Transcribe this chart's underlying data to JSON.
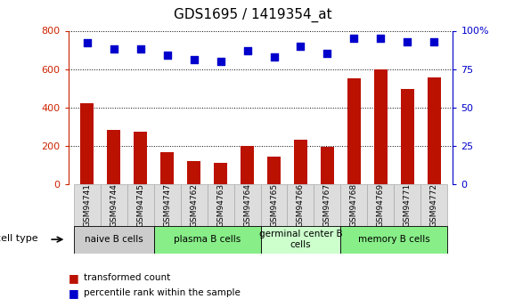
{
  "title": "GDS1695 / 1419354_at",
  "samples": [
    "GSM94741",
    "GSM94744",
    "GSM94745",
    "GSM94747",
    "GSM94762",
    "GSM94763",
    "GSM94764",
    "GSM94765",
    "GSM94766",
    "GSM94767",
    "GSM94768",
    "GSM94769",
    "GSM94771",
    "GSM94772"
  ],
  "transformed_count": [
    420,
    285,
    275,
    165,
    120,
    110,
    200,
    145,
    230,
    195,
    550,
    600,
    495,
    555
  ],
  "percentile_rank": [
    92,
    88,
    88,
    84,
    81,
    80,
    87,
    83,
    90,
    85,
    95,
    95,
    93,
    93
  ],
  "cell_type_groups": [
    {
      "label": "naive B cells",
      "start": 0,
      "end": 3,
      "color": "#cccccc"
    },
    {
      "label": "plasma B cells",
      "start": 3,
      "end": 7,
      "color": "#88ee88"
    },
    {
      "label": "germinal center B\ncells",
      "start": 7,
      "end": 10,
      "color": "#ccffcc"
    },
    {
      "label": "memory B cells",
      "start": 10,
      "end": 14,
      "color": "#88ee88"
    }
  ],
  "bar_color": "#bb1100",
  "dot_color": "#0000cc",
  "left_ylim": [
    0,
    800
  ],
  "left_yticks": [
    0,
    200,
    400,
    600,
    800
  ],
  "right_ylim": [
    0,
    100
  ],
  "right_yticks": [
    0,
    25,
    50,
    75,
    100
  ],
  "right_yticklabels": [
    "0",
    "25",
    "50",
    "75",
    "100%"
  ],
  "left_tick_color": "#cc2200",
  "right_tick_color": "#0000cc",
  "cell_type_label": "cell type",
  "legend": [
    {
      "label": "transformed count",
      "color": "#bb1100"
    },
    {
      "label": "percentile rank within the sample",
      "color": "#0000cc"
    }
  ],
  "bar_width": 0.5,
  "sample_box_color": "#dddddd",
  "tick_box_border": "#aaaaaa"
}
